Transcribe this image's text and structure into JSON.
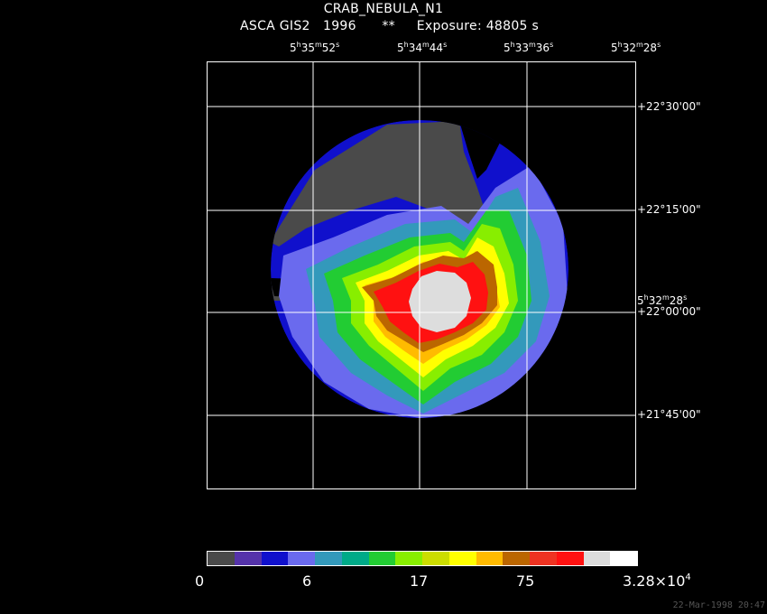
{
  "header": {
    "title": "CRAB_NEBULA_N1",
    "instrument": "ASCA GIS2",
    "year": "1996",
    "flag": "**",
    "exposure": "Exposure: 48805 s"
  },
  "ra_ticks": [
    {
      "h": "5",
      "m": "35",
      "s": "52"
    },
    {
      "h": "5",
      "m": "34",
      "s": "44"
    },
    {
      "h": "5",
      "m": "33",
      "s": "36"
    },
    {
      "h": "5",
      "m": "32",
      "s": "28"
    }
  ],
  "dec_ticks": [
    "+22°30'00\"",
    "+22°15'00\"",
    "+22°00'00\"",
    "+21°45'00\""
  ],
  "extra_ra_label": {
    "h": "5",
    "m": "32",
    "s": "28"
  },
  "colorbar": {
    "colors": [
      "#4a4a4a",
      "#5533aa",
      "#1010cc",
      "#6a6aee",
      "#3399bb",
      "#00aa88",
      "#22cc33",
      "#88ee00",
      "#ccdd00",
      "#ffff00",
      "#ffbb00",
      "#bb6600",
      "#ee3322",
      "#ff1111",
      "#dddddd",
      "#ffffff"
    ],
    "labels": [
      "0",
      "6",
      "17",
      "75"
    ],
    "max_label_mantissa": "3.28×10",
    "max_label_exp": "4"
  },
  "timestamp": "22-Mar-1998 20:47"
}
